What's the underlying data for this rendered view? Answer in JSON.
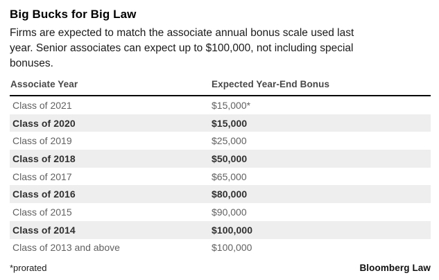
{
  "colors": {
    "stripe": "#eeeeee",
    "rule": "#000000",
    "row_text": "#616161",
    "row_text_bold": "#303030",
    "header_text": "#474747"
  },
  "header": {
    "title": "Big Bucks for Big Law",
    "subtitle_lines": [
      "Firms are expected to match the associate annual bonus scale used last",
      "year. Senior associates can expect up to $100,000, not including special",
      "bonuses."
    ]
  },
  "chart_data": {
    "type": "table",
    "title": "Big Bucks for Big Law",
    "columns": [
      "Associate Year",
      "Expected Year-End Bonus"
    ],
    "rows": [
      {
        "associate_year": "Class of 2021",
        "expected_bonus": "$15,000*",
        "emphasized": false
      },
      {
        "associate_year": "Class of 2020",
        "expected_bonus": "$15,000",
        "emphasized": true
      },
      {
        "associate_year": "Class of 2019",
        "expected_bonus": "$25,000",
        "emphasized": false
      },
      {
        "associate_year": "Class of 2018",
        "expected_bonus": "$50,000",
        "emphasized": true
      },
      {
        "associate_year": "Class of 2017",
        "expected_bonus": "$65,000",
        "emphasized": false
      },
      {
        "associate_year": "Class of 2016",
        "expected_bonus": "$80,000",
        "emphasized": true
      },
      {
        "associate_year": "Class of 2015",
        "expected_bonus": "$90,000",
        "emphasized": false
      },
      {
        "associate_year": "Class of 2014",
        "expected_bonus": "$100,000",
        "emphasized": true
      },
      {
        "associate_year": "Class of 2013 and above",
        "expected_bonus": "$100,000",
        "emphasized": false
      }
    ],
    "bonus_values_numeric": [
      15000,
      15000,
      25000,
      50000,
      65000,
      80000,
      90000,
      100000,
      100000
    ]
  },
  "footer": {
    "footnote": "*prorated",
    "source": "Bloomberg Law"
  }
}
